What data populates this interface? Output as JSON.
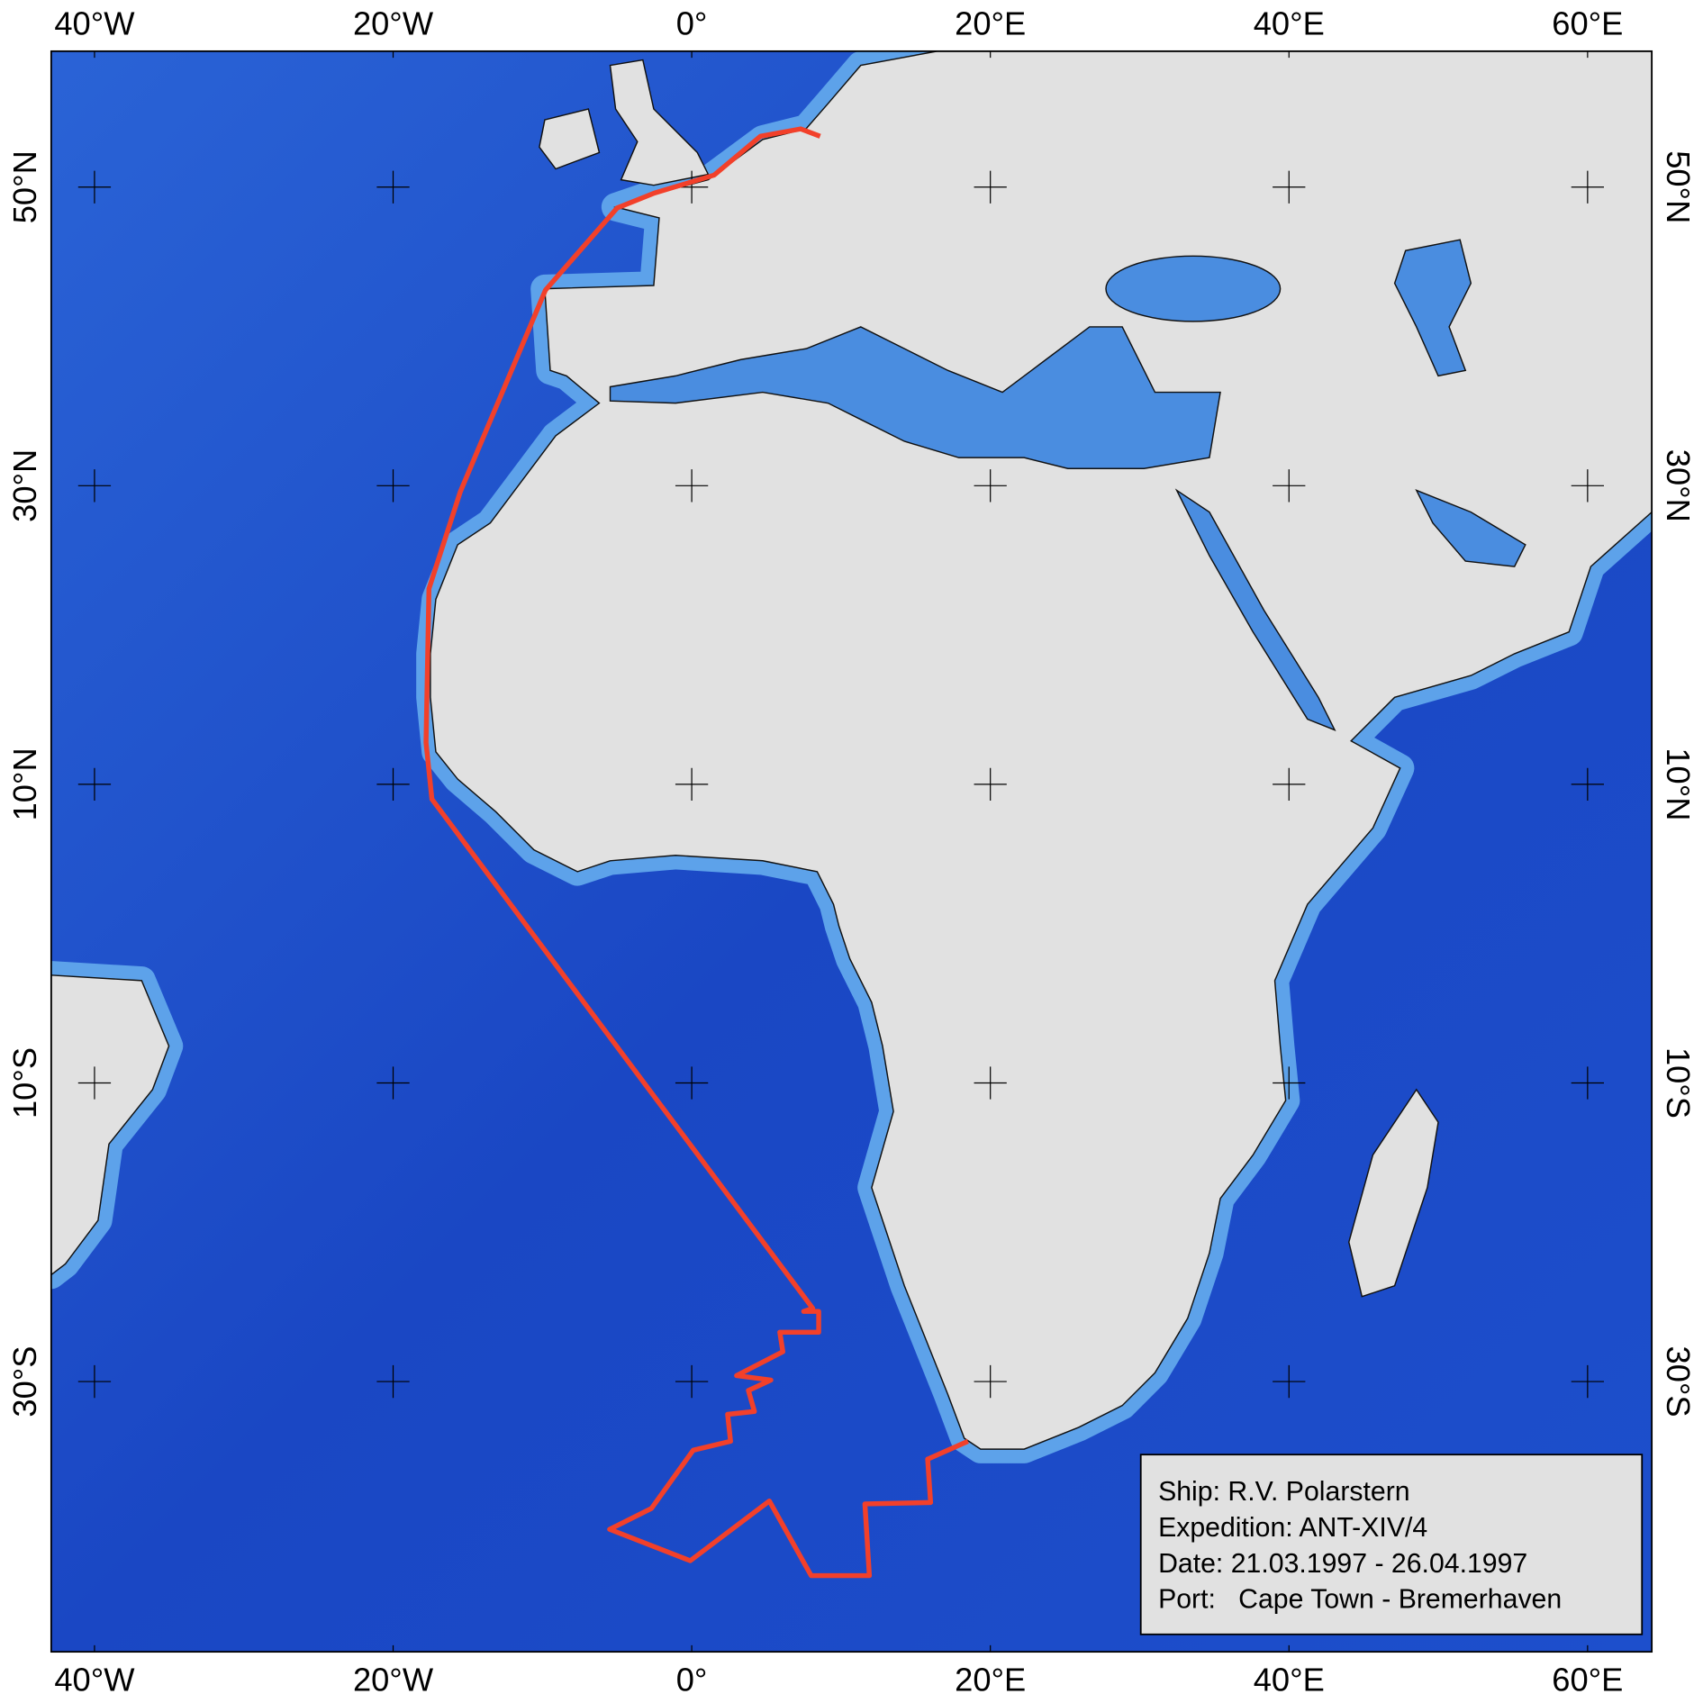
{
  "map": {
    "xlim": [
      -42.9,
      64.3
    ],
    "ylim": [
      -48.1,
      59.1
    ],
    "xticks": [
      {
        "value": -40,
        "label": "40°W"
      },
      {
        "value": -20,
        "label": "20°W"
      },
      {
        "value": 0,
        "label": "0°"
      },
      {
        "value": 20,
        "label": "20°E"
      },
      {
        "value": 40,
        "label": "40°E"
      },
      {
        "value": 60,
        "label": "60°E"
      }
    ],
    "yticks": [
      {
        "value": 50,
        "label": "50°N"
      },
      {
        "value": 30,
        "label": "30°N"
      },
      {
        "value": 10,
        "label": "10°N"
      },
      {
        "value": -10,
        "label": "10°S"
      },
      {
        "value": -30,
        "label": "30°S"
      }
    ],
    "track": {
      "color": "#f2402a",
      "lon": [
        18.5,
        15.8,
        16.0,
        11.6,
        11.9,
        8.0,
        5.2,
        -0.1,
        -5.5,
        -2.7,
        0.1,
        2.6,
        2.4,
        4.2,
        3.8,
        5.3,
        3.0,
        6.1,
        5.9,
        8.5,
        8.5,
        7.5,
        8.1,
        -17.4,
        -17.8,
        -17.6,
        -15.5,
        -9.8,
        -5.0,
        -2.5,
        1.5,
        4.6,
        7.3,
        8.6
      ],
      "lat": [
        -34.0,
        -35.2,
        -38.1,
        -38.2,
        -43.0,
        -43.0,
        -38.0,
        -42.0,
        -39.9,
        -38.5,
        -34.6,
        -34.0,
        -32.2,
        -32.0,
        -30.6,
        -29.9,
        -29.6,
        -28.0,
        -26.7,
        -26.7,
        -25.3,
        -25.3,
        -25.1,
        9.0,
        12.8,
        23.1,
        29.6,
        43.1,
        48.6,
        49.6,
        50.8,
        53.4,
        53.9,
        53.4
      ]
    },
    "legend": [
      "Ship: R.V. Polarstern",
      "Expedition: ANT-XIV/4",
      "Date: 21.03.1997 - 26.04.1997",
      "Port:   Cape Town - Bremerhaven"
    ]
  }
}
